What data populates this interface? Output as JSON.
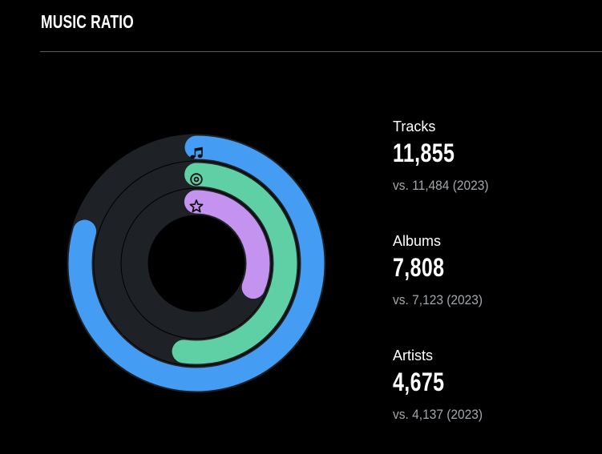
{
  "header": {
    "title": "MUSIC RATIO"
  },
  "stats": {
    "items": [
      {
        "label": "Tracks",
        "value": "11,855",
        "comparison": "vs. 11,484 (2023)"
      },
      {
        "label": "Albums",
        "value": "7,808",
        "comparison": "vs. 7,123 (2023)"
      },
      {
        "label": "Artists",
        "value": "4,675",
        "comparison": "vs. 4,137 (2023)"
      }
    ]
  },
  "chart_data": {
    "type": "radial-progress-rings",
    "title": "MUSIC RATIO",
    "start_angle": "12-oclock",
    "direction": "clockwise",
    "max_sweep_deg": 286,
    "normalized_to": "max_value",
    "track_color": "#1E2126",
    "icon_color": "#0B0D10",
    "background_color": "#000000",
    "rings": [
      {
        "id": "tracks",
        "label": "Tracks",
        "value": 11855,
        "prev_value": 11484,
        "prev_year": 2023,
        "color": "#459DF3",
        "icon": "music-note-icon"
      },
      {
        "id": "albums",
        "label": "Albums",
        "value": 7808,
        "prev_value": 7123,
        "prev_year": 2023,
        "color": "#5FD0A6",
        "icon": "disc-icon"
      },
      {
        "id": "artists",
        "label": "Artists",
        "value": 4675,
        "prev_value": 4137,
        "prev_year": 2023,
        "color": "#C493F0",
        "icon": "star-icon"
      }
    ]
  }
}
